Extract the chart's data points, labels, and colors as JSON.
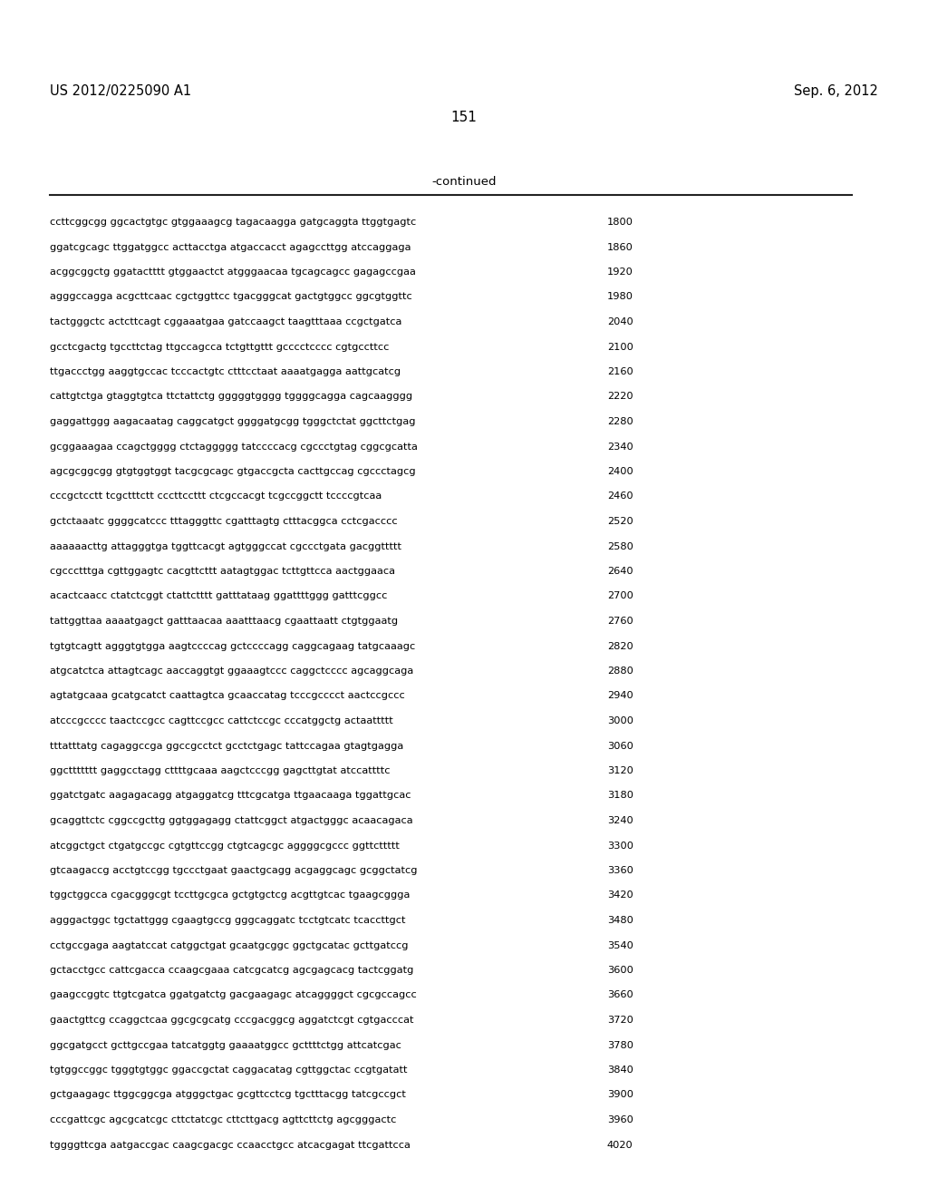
{
  "header_left": "US 2012/0225090 A1",
  "header_right": "Sep. 6, 2012",
  "page_number": "151",
  "continued_label": "-continued",
  "background_color": "#ffffff",
  "text_color": "#000000",
  "sequences": [
    [
      "ccttcggcgg ggcactgtgc gtggaaagcg tagacaagga gatgcaggta ttggtgagtc",
      "1800"
    ],
    [
      "ggatcgcagc ttggatggcc acttacctga atgaccacct agagccttgg atccaggaga",
      "1860"
    ],
    [
      "acggcggctg ggatactttt gtggaactct atgggaacaa tgcagcagcc gagagccgaa",
      "1920"
    ],
    [
      "agggccagga acgcttcaac cgctggttcc tgacgggcat gactgtggcc ggcgtggttc",
      "1980"
    ],
    [
      "tactgggctc actcttcagt cggaaatgaa gatccaagct taagtttaaa ccgctgatca",
      "2040"
    ],
    [
      "gcctcgactg tgccttctag ttgccagcca tctgttgttt gcccctcccc cgtgccttcc",
      "2100"
    ],
    [
      "ttgaccctgg aaggtgccac tcccactgtc ctttcctaat aaaatgagga aattgcatcg",
      "2160"
    ],
    [
      "cattgtctga gtaggtgtca ttctattctg gggggtgggg tggggcagga cagcaagggg",
      "2220"
    ],
    [
      "gaggattggg aagacaatag caggcatgct ggggatgcgg tgggctctat ggcttctgag",
      "2280"
    ],
    [
      "gcggaaagaa ccagctgggg ctctaggggg tatccccacg cgccctgtag cggcgcatta",
      "2340"
    ],
    [
      "agcgcggcgg gtgtggtggt tacgcgcagc gtgaccgcta cacttgccag cgccctagcg",
      "2400"
    ],
    [
      "cccgctcctt tcgctttctt cccttccttt ctcgccacgt tcgccggctt tccccgtcaa",
      "2460"
    ],
    [
      "gctctaaatc ggggcatccc tttagggttc cgatttagtg ctttacggca cctcgacccc",
      "2520"
    ],
    [
      "aaaaaacttg attagggtga tggttcacgt agtgggccat cgccctgata gacggttttt",
      "2580"
    ],
    [
      "cgccctttga cgttggagtc cacgttcttt aatagtggac tcttgttcca aactggaaca",
      "2640"
    ],
    [
      "acactcaacc ctatctcggt ctattctttt gatttataag ggattttggg gatttcggcc",
      "2700"
    ],
    [
      "tattggttaa aaaatgagct gatttaacaa aaatttaacg cgaattaatt ctgtggaatg",
      "2760"
    ],
    [
      "tgtgtcagtt agggtgtgga aagtccccag gctccccagg caggcagaag tatgcaaagc",
      "2820"
    ],
    [
      "atgcatctca attagtcagc aaccaggtgt ggaaagtccc caggctcccc agcaggcaga",
      "2880"
    ],
    [
      "agtatgcaaa gcatgcatct caattagtca gcaaccatag tcccgcccct aactccgccc",
      "2940"
    ],
    [
      "atcccgcccc taactccgcc cagttccgcc cattctccgc cccatggctg actaattttt",
      "3000"
    ],
    [
      "tttatttatg cagaggccga ggccgcctct gcctctgagc tattccagaa gtagtgagga",
      "3060"
    ],
    [
      "ggcttttttt gaggcctagg cttttgcaaa aagctcccgg gagcttgtat atccattttc",
      "3120"
    ],
    [
      "ggatctgatc aagagacagg atgaggatcg tttcgcatga ttgaacaaga tggattgcac",
      "3180"
    ],
    [
      "gcaggttctc cggccgcttg ggtggagagg ctattcggct atgactgggc acaacagaca",
      "3240"
    ],
    [
      "atcggctgct ctgatgccgc cgtgttccgg ctgtcagcgc aggggcgccc ggttcttttt",
      "3300"
    ],
    [
      "gtcaagaccg acctgtccgg tgccctgaat gaactgcagg acgaggcagc gcggctatcg",
      "3360"
    ],
    [
      "tggctggcca cgacgggcgt tccttgcgca gctgtgctcg acgttgtcac tgaagcggga",
      "3420"
    ],
    [
      "agggactggc tgctattggg cgaagtgccg gggcaggatc tcctgtcatc tcaccttgct",
      "3480"
    ],
    [
      "cctgccgaga aagtatccat catggctgat gcaatgcggc ggctgcatac gcttgatccg",
      "3540"
    ],
    [
      "gctacctgcc cattcgacca ccaagcgaaa catcgcatcg agcgagcacg tactcggatg",
      "3600"
    ],
    [
      "gaagccggtc ttgtcgatca ggatgatctg gacgaagagc atcaggggct cgcgccagcc",
      "3660"
    ],
    [
      "gaactgttcg ccaggctcaa ggcgcgcatg cccgacggcg aggatctcgt cgtgacccat",
      "3720"
    ],
    [
      "ggcgatgcct gcttgccgaa tatcatggtg gaaaatggcc gcttttctgg attcatcgac",
      "3780"
    ],
    [
      "tgtggccggc tgggtgtggc ggaccgctat caggacatag cgttggctac ccgtgatatt",
      "3840"
    ],
    [
      "gctgaagagc ttggcggcga atgggctgac gcgttcctcg tgctttacgg tatcgccgct",
      "3900"
    ],
    [
      "cccgattcgc agcgcatcgc cttctatcgc cttcttgacg agttcttctg agcgggactc",
      "3960"
    ],
    [
      "tggggttcga aatgaccgac caagcgacgc ccaacctgcc atcacgagat ttcgattcca",
      "4020"
    ]
  ]
}
